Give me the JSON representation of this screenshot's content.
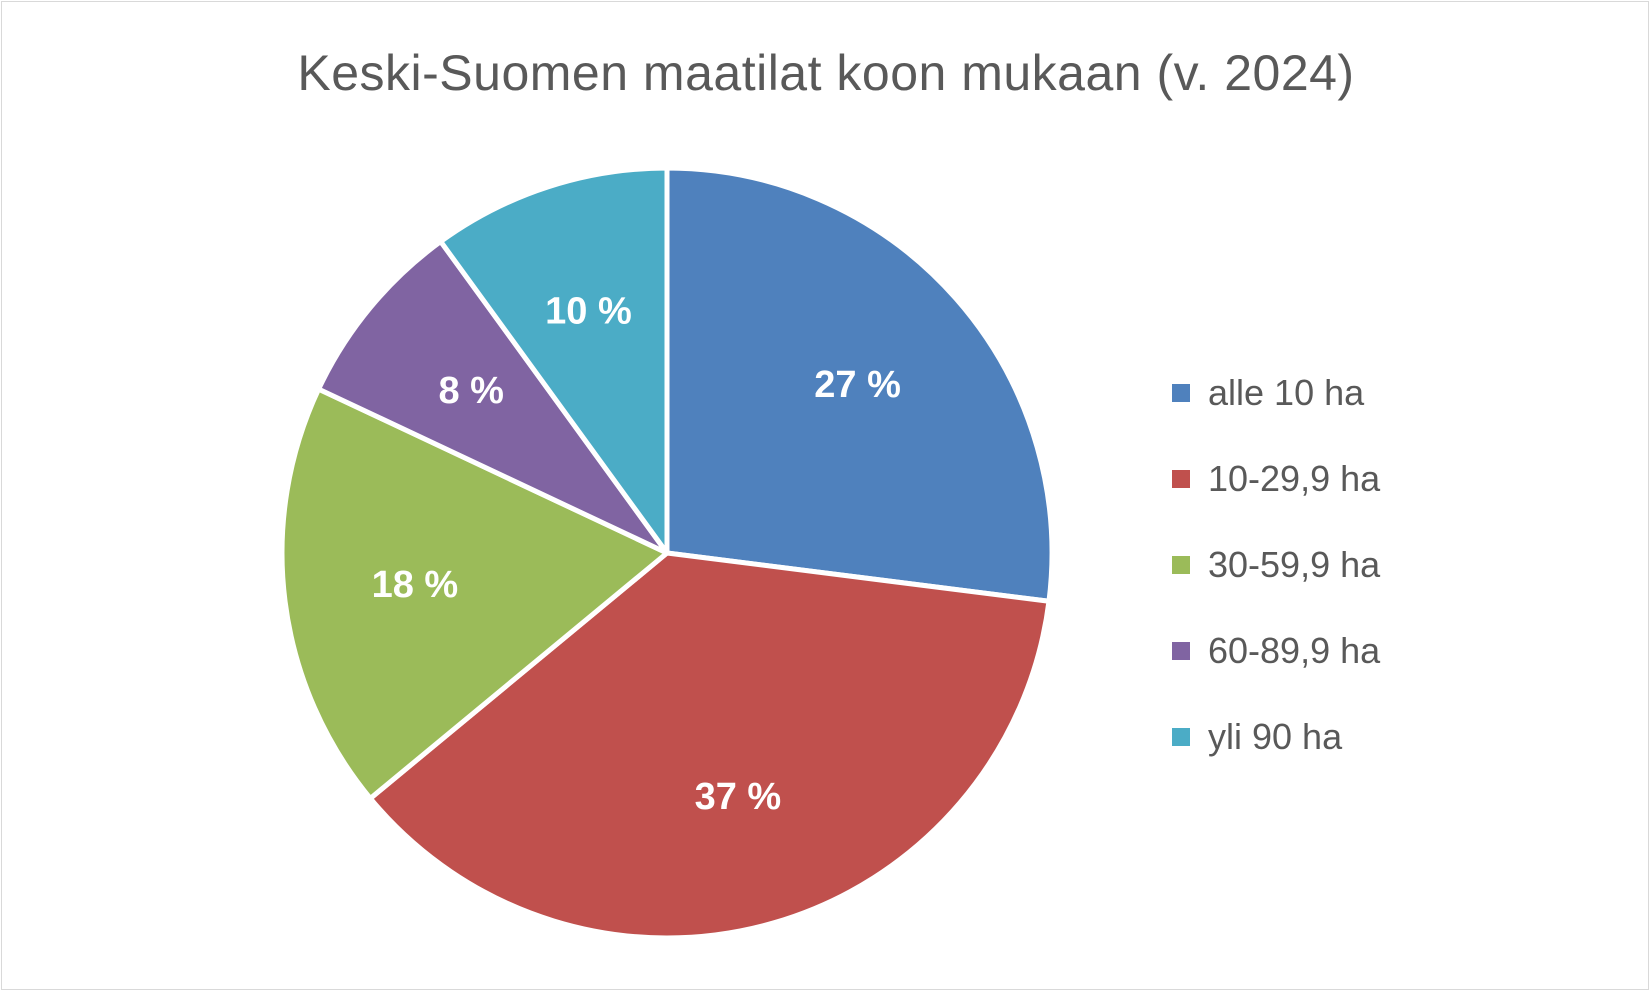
{
  "chart_data": {
    "type": "pie",
    "title": "Keski-Suomen maatilat koon mukaan (v. 2024)",
    "categories": [
      "alle 10 ha",
      "10-29,9 ha",
      "30-59,9 ha",
      "60-89,9 ha",
      "yli 90 ha"
    ],
    "values": [
      27,
      37,
      18,
      8,
      10
    ],
    "labels": [
      "27 %",
      "37 %",
      "18 %",
      "8 %",
      "10 %"
    ],
    "colors": [
      "#4f81bd",
      "#c0504d",
      "#9bbb59",
      "#8064a2",
      "#4bacc6"
    ],
    "legend_position": "right",
    "start_angle": "12 o'clock, clockwise"
  }
}
